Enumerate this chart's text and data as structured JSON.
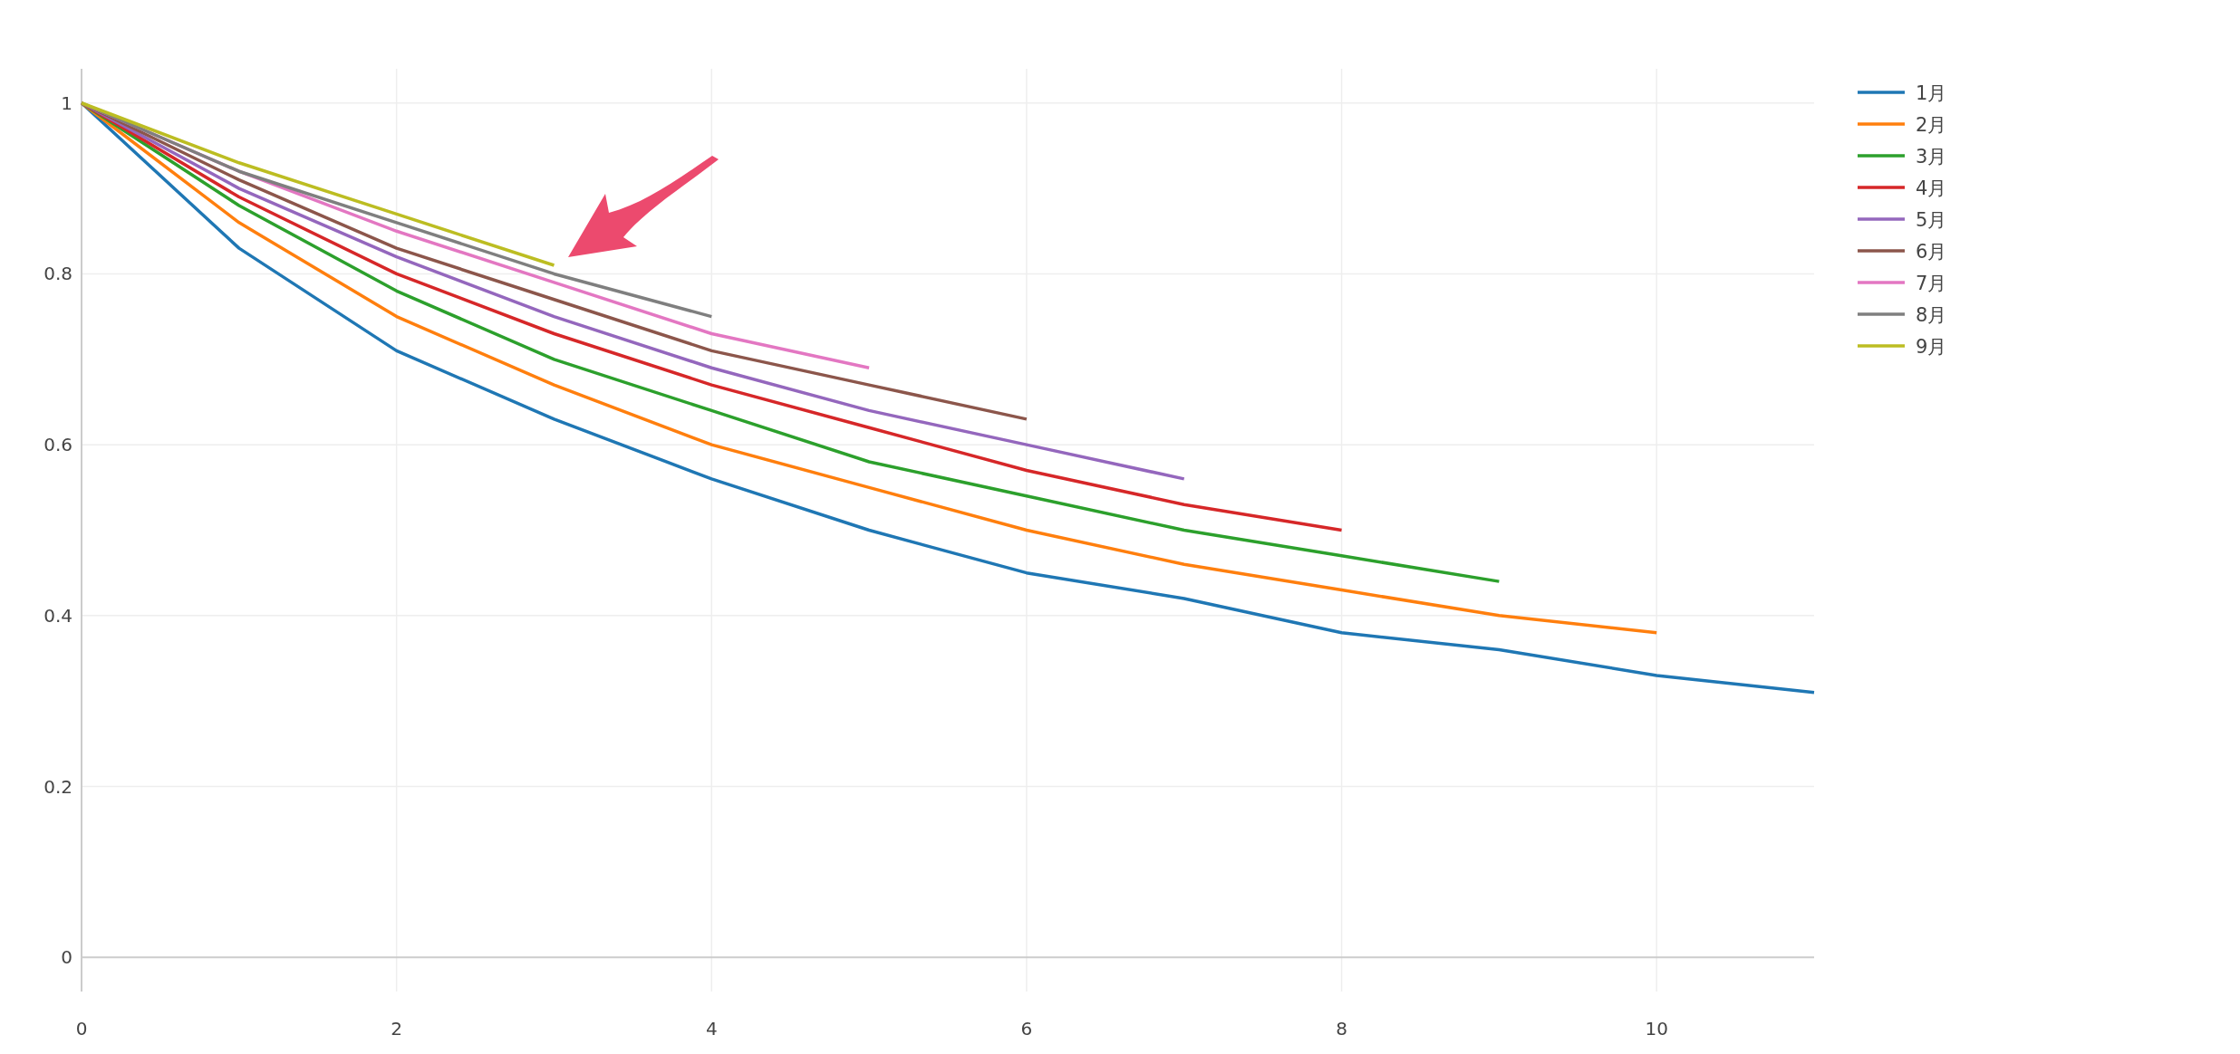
{
  "chart_data": {
    "type": "line",
    "xlim": [
      0,
      11
    ],
    "xticks": [
      0,
      2,
      4,
      6,
      8,
      10
    ],
    "ylim": [
      -0.04,
      1.04
    ],
    "yticks": [
      0,
      0.2,
      0.4,
      0.6,
      0.8,
      1
    ],
    "grid": true,
    "legend": "top right",
    "marker": "none",
    "line_style": "solid",
    "series": [
      {
        "name": "1月",
        "color": "#1f77b4",
        "x": [
          0,
          1,
          2,
          3,
          4,
          5,
          6,
          7,
          8,
          9,
          10,
          11
        ],
        "values": [
          1,
          0.83,
          0.71,
          0.63,
          0.56,
          0.5,
          0.45,
          0.42,
          0.38,
          0.36,
          0.33,
          0.31
        ]
      },
      {
        "name": "2月",
        "color": "#ff7f0e",
        "x": [
          0,
          1,
          2,
          3,
          4,
          5,
          6,
          7,
          8,
          9,
          10
        ],
        "values": [
          1,
          0.86,
          0.75,
          0.67,
          0.6,
          0.55,
          0.5,
          0.46,
          0.43,
          0.4,
          0.38
        ]
      },
      {
        "name": "3月",
        "color": "#2ca02c",
        "x": [
          0,
          1,
          2,
          3,
          4,
          5,
          6,
          7,
          8,
          9
        ],
        "values": [
          1,
          0.88,
          0.78,
          0.7,
          0.64,
          0.58,
          0.54,
          0.5,
          0.47,
          0.44
        ]
      },
      {
        "name": "4月",
        "color": "#d62728",
        "x": [
          0,
          1,
          2,
          3,
          4,
          5,
          6,
          7,
          8
        ],
        "values": [
          1,
          0.89,
          0.8,
          0.73,
          0.67,
          0.62,
          0.57,
          0.53,
          0.5
        ]
      },
      {
        "name": "5月",
        "color": "#9467bd",
        "x": [
          0,
          1,
          2,
          3,
          4,
          5,
          6,
          7
        ],
        "values": [
          1,
          0.9,
          0.82,
          0.75,
          0.69,
          0.64,
          0.6,
          0.56
        ]
      },
      {
        "name": "6月",
        "color": "#8c564b",
        "x": [
          0,
          1,
          2,
          3,
          4,
          5,
          6
        ],
        "values": [
          1,
          0.91,
          0.83,
          0.77,
          0.71,
          0.67,
          0.63
        ]
      },
      {
        "name": "7月",
        "color": "#e377c2",
        "x": [
          0,
          1,
          2,
          3,
          4,
          5
        ],
        "values": [
          1,
          0.92,
          0.85,
          0.79,
          0.73,
          0.69
        ]
      },
      {
        "name": "8月",
        "color": "#7f7f7f",
        "x": [
          0,
          1,
          2,
          3,
          4
        ],
        "values": [
          1,
          0.92,
          0.86,
          0.8,
          0.75
        ]
      },
      {
        "name": "9月",
        "color": "#bcbd22",
        "x": [
          0,
          1,
          2,
          3
        ],
        "values": [
          1,
          0.93,
          0.87,
          0.81
        ]
      }
    ]
  }
}
